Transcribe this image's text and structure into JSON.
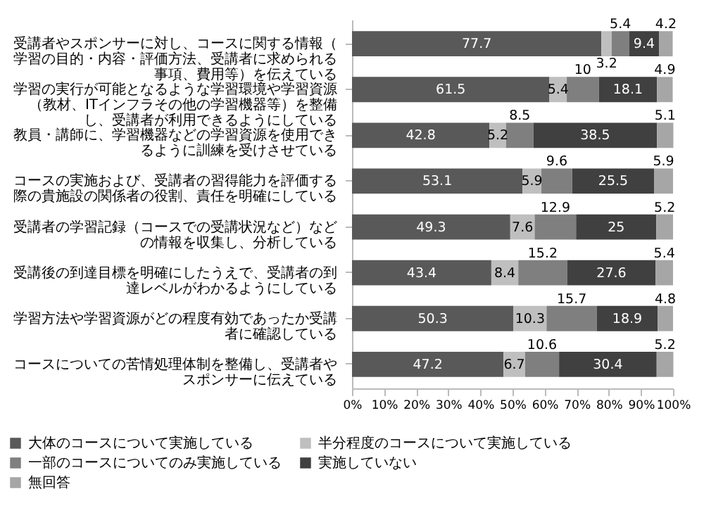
{
  "chart_data": {
    "type": "bar",
    "orientation": "horizontal",
    "stacked": true,
    "data_labels": true,
    "grid": false,
    "legend": "bottom",
    "categories": [
      "受講者やスポンサーに対し、コースに関する情報（学習の目的・内容・評価方法、受講者に求められる事項、費用等）を伝えている",
      "学習の実行が可能となるような学習環境や学習資源（教材、ITインフラその他の学習機器等）を整備し、受講者が利用できるようにしている",
      "教員・講師に、学習機器などの学習資源を使用できるように訓練を受けさせている",
      "コースの実施および、受講者の習得能力を評価する際の貴施設の関係者の役割、責任を明確にしている",
      "受講者の学習記録（コースでの受講状況など）などの情報を収集し、分析している",
      "受講後の到達目標を明確にしたうえで、受講者の到達レベルがわかるようにしている",
      "学習方法や学習資源がどの程度有効であったか受講者に確認している",
      "コースについての苦情処理体制を整備し、受講者やスポンサーに伝えている"
    ],
    "series": [
      {
        "name": "大体のコースについて実施している",
        "color": "#595959",
        "values": [
          77.7,
          61.5,
          42.8,
          53.1,
          49.3,
          43.4,
          50.3,
          47.2
        ]
      },
      {
        "name": "半分程度のコースについて実施している",
        "color": "#bfbfbf",
        "values": [
          3.2,
          5.4,
          5.2,
          5.9,
          7.6,
          8.4,
          10.3,
          6.7
        ]
      },
      {
        "name": "一部のコースについてのみ実施している",
        "color": "#7f7f7f",
        "values": [
          5.4,
          10.0,
          8.5,
          9.6,
          12.9,
          15.2,
          15.7,
          10.6
        ]
      },
      {
        "name": "実施していない",
        "color": "#404040",
        "values": [
          9.4,
          18.1,
          38.5,
          25.5,
          25.0,
          27.6,
          18.9,
          30.4
        ]
      },
      {
        "name": "無回答",
        "color": "#a6a6a6",
        "values": [
          4.2,
          4.9,
          5.1,
          5.9,
          5.2,
          5.4,
          4.8,
          5.2
        ]
      }
    ],
    "xlim": [
      0,
      100
    ],
    "xticks": [
      {
        "value": 0,
        "label": "0%"
      },
      {
        "value": 10,
        "label": "10%"
      },
      {
        "value": 20,
        "label": "20%"
      },
      {
        "value": 30,
        "label": "30%"
      },
      {
        "value": 40,
        "label": "40%"
      },
      {
        "value": 50,
        "label": "50%"
      },
      {
        "value": 60,
        "label": "60%"
      },
      {
        "value": 70,
        "label": "70%"
      },
      {
        "value": 80,
        "label": "80%"
      },
      {
        "value": 90,
        "label": "90%"
      },
      {
        "value": 100,
        "label": "100%"
      }
    ]
  }
}
